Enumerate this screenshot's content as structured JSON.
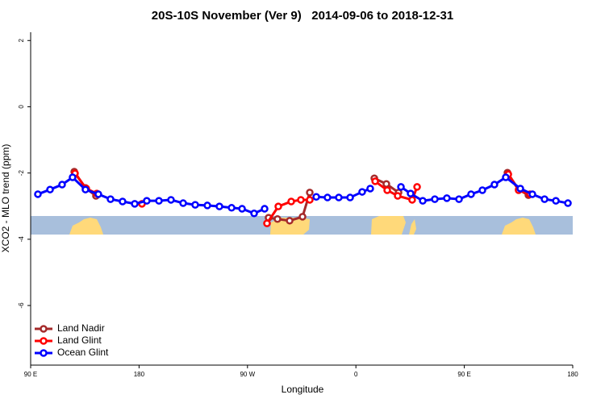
{
  "chart_data": {
    "type": "line",
    "title": "20S-10S November (Ver 9)   2014-09-06 to 2018-12-31",
    "xlabel": "Longitude",
    "ylabel": "XCO2 - MLO trend (ppm)",
    "xlim": [
      90,
      540
    ],
    "ylim": [
      -7.8,
      2.25
    ],
    "xticks": [
      {
        "value": 90,
        "label": "90 E"
      },
      180,
      {
        "value": 270,
        "label": "90 W"
      },
      {
        "value": 360,
        "label": "0"
      },
      {
        "value": 450,
        "label": "90 E"
      },
      {
        "value": 540,
        "label": "180"
      }
    ],
    "yticks": [
      2,
      0,
      -2,
      -4,
      -6
    ],
    "legend": "bottom-left",
    "series": [
      {
        "name": "Land Nadir",
        "color": "#a52a2a",
        "x": [
          126.2,
          135.5,
          144.2,
          null,
          287.5,
          294.9,
          305,
          315.7,
          321.7,
          null,
          375.3,
          385.3,
          395.4,
          null,
          485.8,
          495.1,
          503.2
        ],
        "values": [
          -1.96,
          -2.45,
          -2.69,
          null,
          -3.35,
          -3.39,
          -3.44,
          -3.32,
          -2.59,
          null,
          -2.16,
          -2.33,
          -2.59,
          null,
          -1.99,
          -2.5,
          -2.67
        ]
      },
      {
        "name": "Land Glint",
        "color": "#ff0000",
        "x": [
          126.8,
          136.2,
          144.9,
          null,
          182.4,
          null,
          286.2,
          295.6,
          306.3,
          314.3,
          321.7,
          null,
          376,
          386,
          394.7,
          406.7,
          410.8,
          null,
          486.5,
          495.1,
          504.5
        ],
        "values": [
          -2.01,
          -2.47,
          -2.62,
          null,
          -2.93,
          null,
          -3.52,
          -3.01,
          -2.86,
          -2.81,
          -2.81,
          null,
          -2.25,
          -2.52,
          -2.69,
          -2.81,
          -2.42,
          null,
          -2.04,
          -2.52,
          -2.64
        ]
      },
      {
        "name": "Ocean Glint",
        "color": "#0000ff",
        "x": [
          96,
          106.1,
          116.1,
          124.8,
          135.5,
          146.2,
          156.3,
          166.3,
          176.4,
          186.4,
          196.5,
          206.5,
          216.6,
          226.6,
          236.7,
          246.7,
          256.8,
          265.5,
          275.5,
          284.2,
          null,
          327.1,
          336.4,
          345.8,
          355.2,
          365.2,
          371.9,
          null,
          397.4,
          405.4,
          415.5,
          425.5,
          435.5,
          445.6,
          455.6,
          465,
          475,
          484.4,
          496.5,
          506.5,
          516.6,
          526,
          536
        ],
        "values": [
          -2.64,
          -2.5,
          -2.35,
          -2.13,
          -2.5,
          -2.64,
          -2.79,
          -2.86,
          -2.93,
          -2.84,
          -2.84,
          -2.81,
          -2.91,
          -2.96,
          -2.98,
          -3.01,
          -3.05,
          -3.08,
          -3.22,
          -3.08,
          null,
          -2.72,
          -2.74,
          -2.74,
          -2.74,
          -2.57,
          -2.47,
          null,
          -2.42,
          -2.62,
          -2.84,
          -2.79,
          -2.76,
          -2.79,
          -2.64,
          -2.52,
          -2.35,
          -2.13,
          -2.47,
          -2.64,
          -2.79,
          -2.84,
          -2.91
        ]
      }
    ]
  }
}
